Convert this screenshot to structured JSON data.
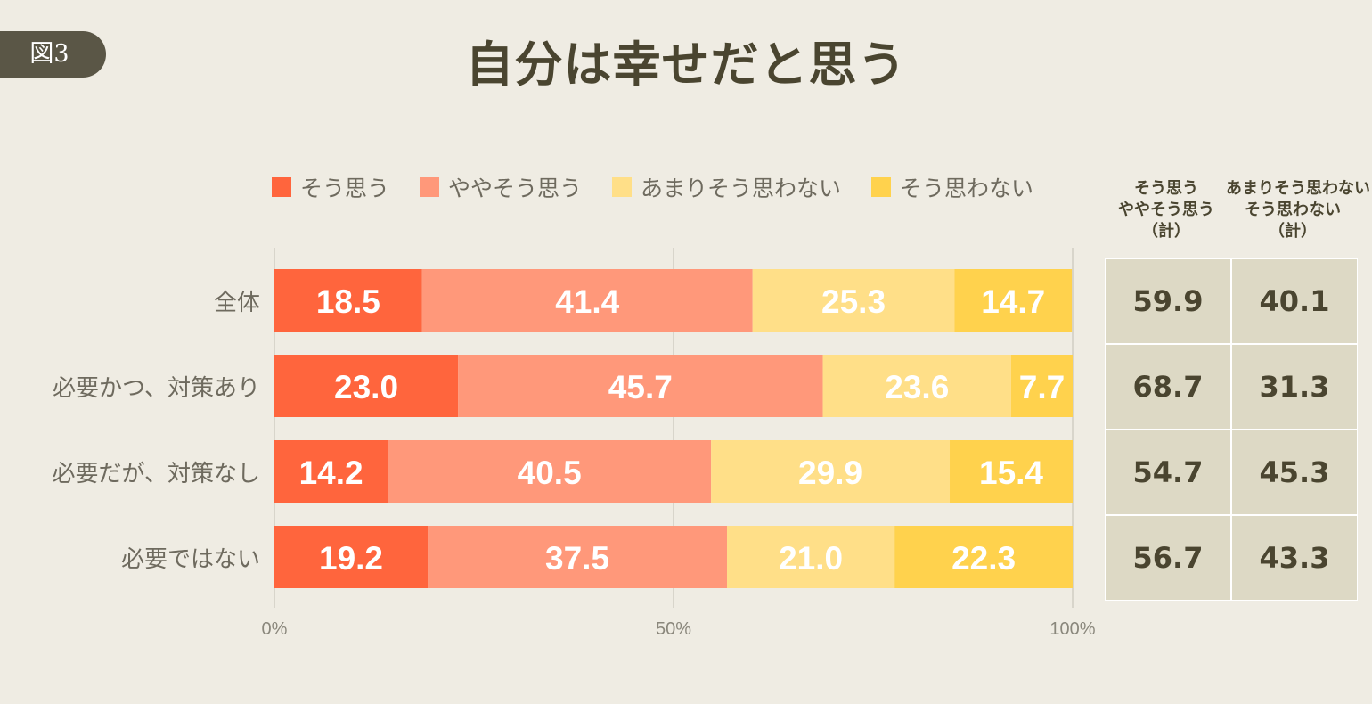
{
  "badge": "図3",
  "chart_data": {
    "type": "bar",
    "orientation": "horizontal-stacked-100",
    "title": "自分は幸せだと思う",
    "categories": [
      "全体",
      "必要かつ、対策あり",
      "必要だが、対策なし",
      "必要ではない"
    ],
    "series": [
      {
        "name": "そう思う",
        "color": "#FF653D",
        "values": [
          18.5,
          23.0,
          14.2,
          19.2
        ]
      },
      {
        "name": "ややそう思う",
        "color": "#FF987A",
        "values": [
          41.4,
          45.7,
          40.5,
          37.5
        ]
      },
      {
        "name": "あまりそう思わない",
        "color": "#FFDF88",
        "values": [
          25.3,
          23.6,
          29.9,
          21.0
        ]
      },
      {
        "name": "そう思わない",
        "color": "#FFD24D",
        "values": [
          14.7,
          7.7,
          15.4,
          22.3
        ]
      }
    ],
    "xlim": [
      0,
      100
    ],
    "xticks": [
      "0%",
      "50%",
      "100%"
    ],
    "grid": true,
    "legend": "top",
    "summary_table": {
      "headers": [
        [
          "そう思う",
          "ややそう思う",
          "（計）"
        ],
        [
          "あまりそう思わない",
          "そう思わない",
          "（計）"
        ]
      ],
      "rows": [
        [
          "59.9",
          "40.1"
        ],
        [
          "68.7",
          "31.3"
        ],
        [
          "54.7",
          "45.3"
        ],
        [
          "56.7",
          "43.3"
        ]
      ]
    }
  }
}
